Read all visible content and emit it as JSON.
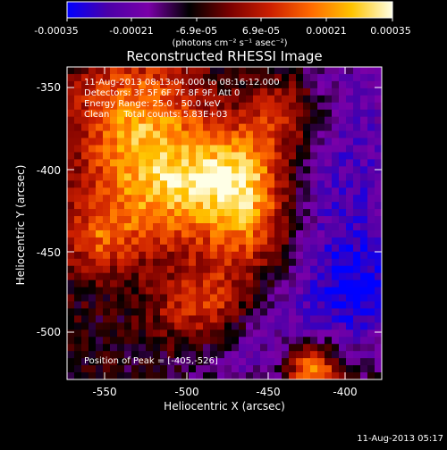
{
  "colorbar": {
    "tick_labels": [
      "-0.00035",
      "-0.00021",
      "-6.9e-05",
      "6.9e-05",
      "0.00021",
      "0.00035"
    ],
    "units": "(photons cm⁻² s⁻¹ asec⁻²)",
    "range": [
      -0.00035,
      0.00035
    ],
    "stops": [
      "#0000ff",
      "#4b00a8",
      "#7a00a8",
      "#000000",
      "#7a0000",
      "#cc1f00",
      "#ff6a00",
      "#ffc400",
      "#ffffe6"
    ]
  },
  "image": {
    "title": "Reconstructed RHESSI Image",
    "info_lines": [
      "11-Aug-2013 08:13:04.000 to 08:16:12.000",
      "Detectors: 3F 5F 6F 7F 8F 9F, Att 0",
      "Energy Range: 25.0 - 50.0 keV",
      "Clean     Total counts: 5.83E+03"
    ],
    "peak_label": "Position of Peak = [-405,-526]",
    "xlabel": "Heliocentric X (arcsec)",
    "ylabel": "Heliocentric Y (arcsec)",
    "x_ticks": [
      "-550",
      "-500",
      "-450",
      "-400"
    ],
    "y_ticks": [
      "-350",
      "-400",
      "-450",
      "-500"
    ],
    "x_range": [
      -570,
      -378
    ],
    "y_range": [
      -530,
      -338
    ]
  },
  "footer": {
    "timestamp": "11-Aug-2013 05:17"
  }
}
